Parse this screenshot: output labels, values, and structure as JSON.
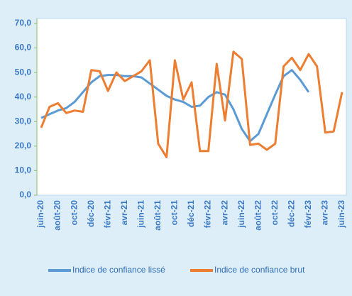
{
  "chart_data": {
    "type": "line",
    "categories": [
      "juin-20",
      null,
      "août-20",
      null,
      "oct-20",
      null,
      "déc-20",
      null,
      "févr-21",
      null,
      "avr-21",
      null,
      "juin-21",
      null,
      "août-21",
      null,
      "oct-21",
      null,
      "déc-21",
      null,
      "févr-22",
      null,
      "avr-22",
      null,
      "juin-22",
      null,
      "août-22",
      null,
      "oct-22",
      null,
      "déc-22",
      null,
      "févr-23",
      null,
      "avr-23",
      null,
      "juin-23"
    ],
    "series": [
      {
        "name": "Indice de confiance lissé",
        "color": "#5b9bd5",
        "values": [
          31.5,
          33,
          34.5,
          35.5,
          38,
          42,
          46,
          48.5,
          49,
          49,
          48.5,
          48.5,
          48,
          45.5,
          43,
          40.5,
          39,
          38,
          36,
          36.5,
          40,
          42,
          41,
          35,
          27,
          22,
          25,
          33,
          41,
          48.5,
          51,
          47,
          42,
          null,
          null,
          null,
          null
        ]
      },
      {
        "name": "Indice de confiance brut",
        "color": "#ed7d31",
        "values": [
          27.5,
          36,
          37.5,
          33.5,
          34.5,
          34,
          51,
          50.5,
          42.5,
          50,
          46.5,
          48.5,
          50.5,
          55,
          21,
          15.5,
          55,
          39,
          46,
          18,
          18,
          53.5,
          30.5,
          58.5,
          55.5,
          20.5,
          21,
          18.5,
          21,
          52.5,
          56,
          51,
          57.5,
          52.5,
          25.5,
          26,
          42
        ]
      }
    ],
    "ylim": [
      0,
      70
    ],
    "yticks": [
      {
        "value": 0,
        "label": "0,0"
      },
      {
        "value": 10,
        "label": "10,0"
      },
      {
        "value": 20,
        "label": "20,0"
      },
      {
        "value": 30,
        "label": "30,0"
      },
      {
        "value": 40,
        "label": "40,0"
      },
      {
        "value": 50,
        "label": "50,0"
      },
      {
        "value": 60,
        "label": "60,0"
      },
      {
        "value": 70,
        "label": "70,0"
      }
    ],
    "grid": false,
    "legend": "bottom"
  }
}
